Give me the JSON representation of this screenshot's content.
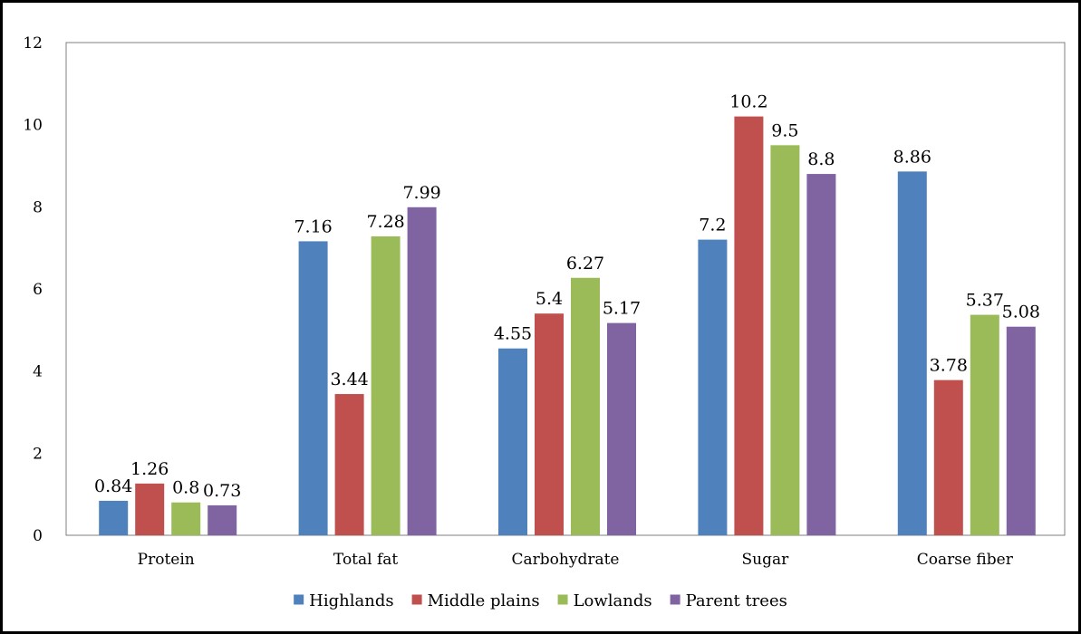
{
  "chart_data": {
    "type": "bar",
    "categories": [
      "Protein",
      "Total fat",
      "Carbohydrate",
      "Sugar",
      "Coarse fiber"
    ],
    "series": [
      {
        "name": "Highlands",
        "color": "#4F81BD",
        "values": [
          0.84,
          7.16,
          4.55,
          7.2,
          8.86
        ]
      },
      {
        "name": "Middle plains",
        "color": "#C0504D",
        "values": [
          1.26,
          3.44,
          5.4,
          10.2,
          3.78
        ]
      },
      {
        "name": "Lowlands",
        "color": "#9BBB59",
        "values": [
          0.8,
          7.28,
          6.27,
          9.5,
          5.37
        ]
      },
      {
        "name": "Parent trees",
        "color": "#8064A2",
        "values": [
          0.73,
          7.99,
          5.17,
          8.8,
          5.08
        ]
      }
    ],
    "data_labels": [
      [
        "0.84",
        "7.16",
        "4.55",
        "7.2",
        "8.86"
      ],
      [
        "1.26",
        "3.44",
        "5.4",
        "10.2",
        "3.78"
      ],
      [
        "0.8",
        "7.28",
        "6.27",
        "9.5",
        "5.37"
      ],
      [
        "0.73",
        "7.99",
        "5.17",
        "8.8",
        "5.08"
      ]
    ],
    "yticks": [
      "0",
      "2",
      "4",
      "6",
      "8",
      "10",
      "12"
    ],
    "ylim": [
      0,
      12
    ],
    "grid": false,
    "legend": "bottom"
  }
}
